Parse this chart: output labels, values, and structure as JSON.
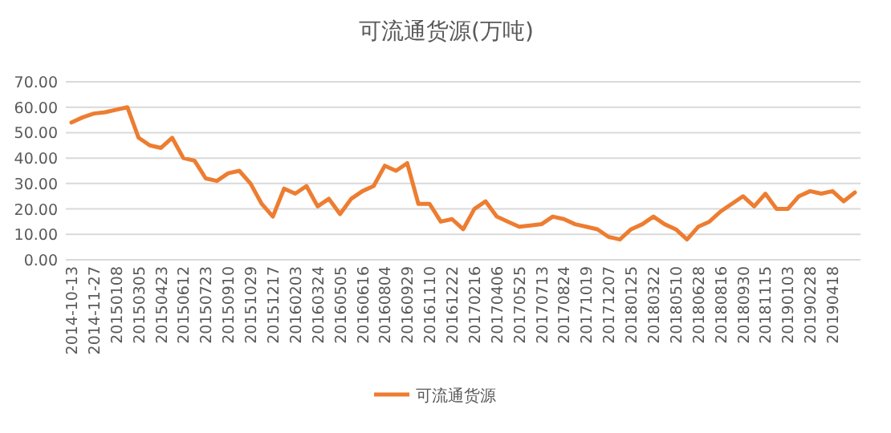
{
  "chart_data": {
    "type": "line",
    "title": "可流通货源(万吨)",
    "categories": [
      "2014-10-13",
      null,
      "2014-11-27",
      null,
      "20150108",
      null,
      "20150305",
      null,
      "20150423",
      null,
      "20150612",
      null,
      "20150723",
      null,
      "20150910",
      null,
      "20151029",
      null,
      "20151217",
      null,
      "20160203",
      null,
      "20160324",
      null,
      "20160505",
      null,
      "20160616",
      null,
      "20160804",
      null,
      "20160929",
      null,
      "20161110",
      null,
      "20161222",
      null,
      "20170216",
      null,
      "20170406",
      null,
      "20170525",
      null,
      "20170713",
      null,
      "20170824",
      null,
      "20171019",
      null,
      "20171207",
      null,
      "20180125",
      null,
      "20180322",
      null,
      "20180510",
      null,
      "20180628",
      null,
      "20180816",
      null,
      "20180930",
      null,
      "20181115",
      null,
      "20190103",
      null,
      "20190228",
      null,
      "20190418",
      null,
      null
    ],
    "series": [
      {
        "name": "可流通货源",
        "color": "#ed7d31",
        "values": [
          54,
          56,
          57.5,
          58,
          59,
          60,
          48,
          45,
          44,
          48,
          40,
          39,
          32,
          31,
          34,
          35,
          30,
          22,
          17,
          28,
          26,
          29,
          21,
          24,
          18,
          24,
          27,
          29,
          37,
          35,
          38,
          22,
          22,
          15,
          16,
          12,
          20,
          23,
          17,
          15,
          13,
          13.5,
          14,
          17,
          16,
          14,
          13,
          12,
          9,
          8,
          12,
          14,
          17,
          14,
          12,
          8,
          13,
          15,
          19,
          22,
          25,
          21,
          26,
          20,
          20,
          25,
          27,
          26,
          27,
          23,
          26.5
        ]
      }
    ],
    "ylim": [
      0,
      70
    ],
    "yticks": [
      {
        "value": 0,
        "label": "0.00"
      },
      {
        "value": 10,
        "label": "10.00"
      },
      {
        "value": 20,
        "label": "20.00"
      },
      {
        "value": 30,
        "label": "30.00"
      },
      {
        "value": 40,
        "label": "40.00"
      },
      {
        "value": 50,
        "label": "50.00"
      },
      {
        "value": 60,
        "label": "60.00"
      },
      {
        "value": 70,
        "label": "70.00"
      }
    ],
    "grid": "y",
    "legend": "bottom"
  }
}
